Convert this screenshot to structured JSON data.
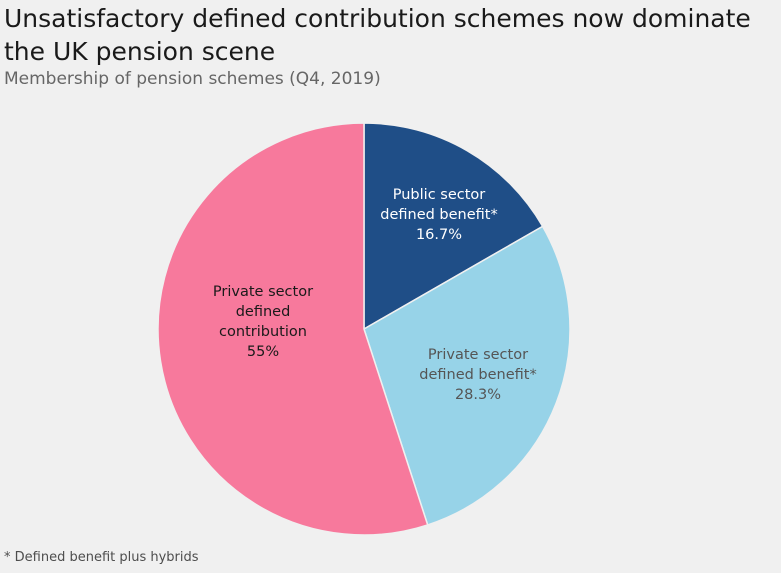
{
  "title": "Unsatisfactory defined contribution schemes now dominate the UK pension scene",
  "subtitle": "Membership of pension schemes (Q4, 2019)",
  "footnote": "* Defined benefit plus hybrids",
  "chart_data": {
    "type": "pie",
    "title": "Unsatisfactory defined contribution schemes now dominate the UK pension scene",
    "subtitle": "Membership of pension schemes (Q4, 2019)",
    "start_angle_deg": 0,
    "direction": "clockwise",
    "slices": [
      {
        "label_lines": [
          "Public sector",
          "defined benefit*",
          "16.7%"
        ],
        "value": 16.7,
        "color": "#1f4e87",
        "text_color": "#ffffff"
      },
      {
        "label_lines": [
          "Private sector",
          "defined benefit*",
          "28.3%"
        ],
        "value": 28.3,
        "color": "#97d3e8",
        "text_color": "#555555"
      },
      {
        "label_lines": [
          "Private sector",
          "defined",
          "contribution",
          "55%"
        ],
        "value": 55,
        "color": "#f7799c",
        "text_color": "#1a1a1a"
      }
    ]
  }
}
